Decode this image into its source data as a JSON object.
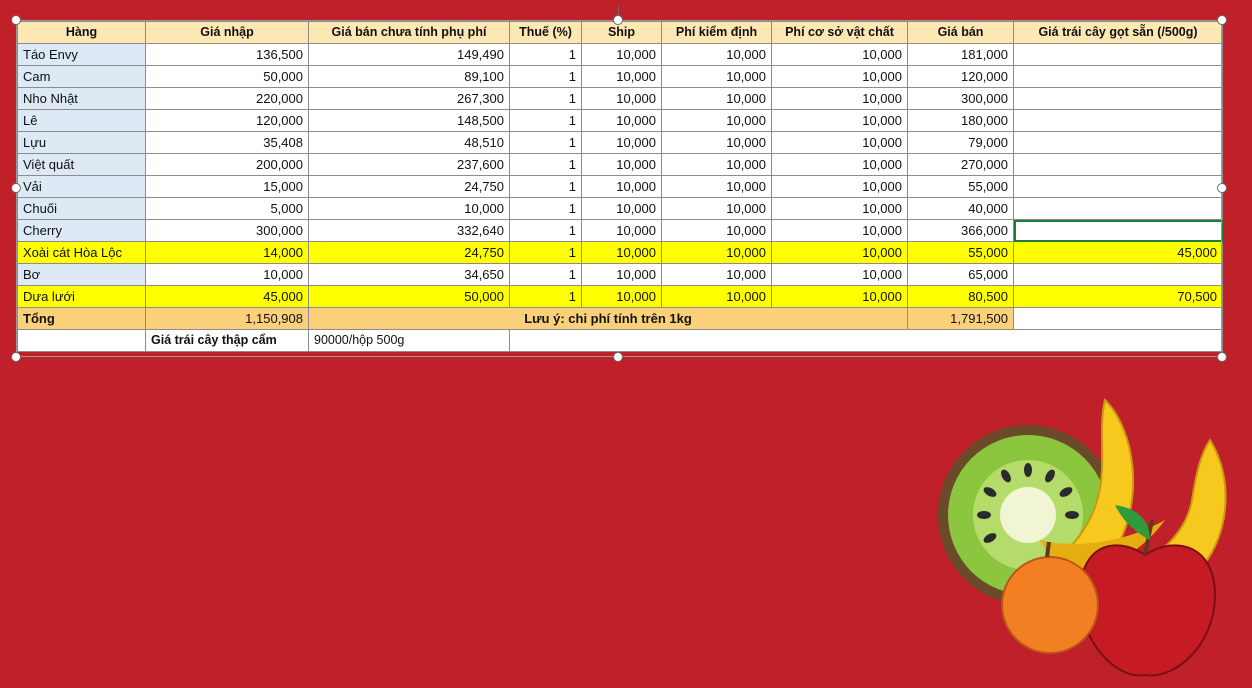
{
  "table": {
    "headers": [
      "Hàng",
      "Giá nhập",
      "Giá bán chưa tính phụ phí",
      "Thuế (%)",
      "Ship",
      "Phí kiểm định",
      "Phí cơ sở vật chất",
      "Giá bán",
      "Giá trái cây gọt sẵn (/500g)"
    ],
    "rows": [
      {
        "name": "Táo Envy",
        "cells": [
          "136,500",
          "149,490",
          "1",
          "10,000",
          "10,000",
          "10,000",
          "181,000",
          ""
        ]
      },
      {
        "name": "Cam",
        "cells": [
          "50,000",
          "89,100",
          "1",
          "10,000",
          "10,000",
          "10,000",
          "120,000",
          ""
        ]
      },
      {
        "name": "Nho Nhật",
        "cells": [
          "220,000",
          "267,300",
          "1",
          "10,000",
          "10,000",
          "10,000",
          "300,000",
          ""
        ]
      },
      {
        "name": "Lê",
        "cells": [
          "120,000",
          "148,500",
          "1",
          "10,000",
          "10,000",
          "10,000",
          "180,000",
          ""
        ]
      },
      {
        "name": "Lựu",
        "cells": [
          "35,408",
          "48,510",
          "1",
          "10,000",
          "10,000",
          "10,000",
          "79,000",
          ""
        ]
      },
      {
        "name": "Việt quất",
        "cells": [
          "200,000",
          "237,600",
          "1",
          "10,000",
          "10,000",
          "10,000",
          "270,000",
          ""
        ]
      },
      {
        "name": "Vải",
        "cells": [
          "15,000",
          "24,750",
          "1",
          "10,000",
          "10,000",
          "10,000",
          "55,000",
          ""
        ]
      },
      {
        "name": "Chuối",
        "cells": [
          "5,000",
          "10,000",
          "1",
          "10,000",
          "10,000",
          "10,000",
          "40,000",
          ""
        ]
      },
      {
        "name": "Cherry",
        "cells": [
          "300,000",
          "332,640",
          "1",
          "10,000",
          "10,000",
          "10,000",
          "366,000",
          ""
        ],
        "selected_last": true
      },
      {
        "name": "Xoài cát Hòa Lộc",
        "cells": [
          "14,000",
          "24,750",
          "1",
          "10,000",
          "10,000",
          "10,000",
          "55,000",
          "45,000"
        ],
        "highlight": true
      },
      {
        "name": "Bơ",
        "cells": [
          "10,000",
          "34,650",
          "1",
          "10,000",
          "10,000",
          "10,000",
          "65,000",
          ""
        ]
      },
      {
        "name": "Dưa lưới",
        "cells": [
          "45,000",
          "50,000",
          "1",
          "10,000",
          "10,000",
          "10,000",
          "80,500",
          "70,500"
        ],
        "highlight": true
      }
    ],
    "total": {
      "label": "Tổng",
      "import_total": "1,150,908",
      "note": "Lưu ý: chi phí tính trên 1kg",
      "sale_total": "1,791,500"
    },
    "mixed": {
      "label": "Giá trái cây thập cẩm",
      "value": "90000/hộp 500g"
    }
  },
  "colors": {
    "background": "#c0202a",
    "header": "#fde7b3",
    "name_col": "#dde9f5",
    "highlight": "#ffff00",
    "total": "#fbd07a",
    "selected_cell": "#1e7b3a"
  },
  "decoration": {
    "icons": [
      "kiwi-icon",
      "banana-icon",
      "orange-icon",
      "apple-icon"
    ]
  }
}
